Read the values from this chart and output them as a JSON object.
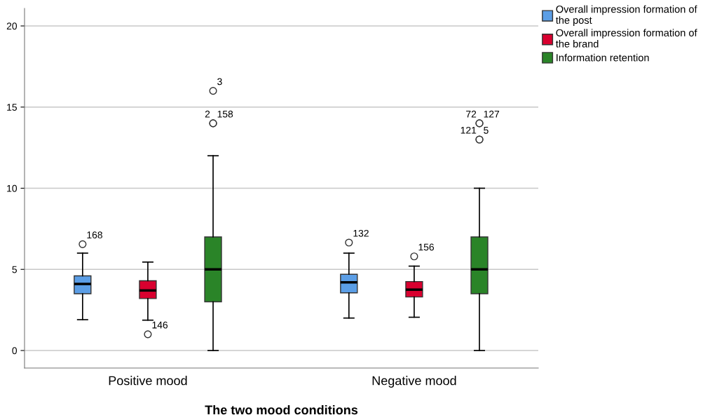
{
  "chart_data": {
    "type": "box",
    "xlabel": "The two mood conditions",
    "categories": [
      "Positive mood",
      "Negative mood"
    ],
    "series": [
      {
        "name": "Overall impression formation of\nthe post",
        "color": "#5b9ee6",
        "boxes": [
          {
            "low": 1.9,
            "q1": 3.5,
            "median": 4.1,
            "q3": 4.6,
            "high": 6.0,
            "outliers": [
              6.55
            ]
          },
          {
            "low": 2.0,
            "q1": 3.55,
            "median": 4.2,
            "q3": 4.7,
            "high": 6.0,
            "outliers": [
              6.65
            ]
          }
        ]
      },
      {
        "name": "Overall impression formation of\nthe brand",
        "color": "#d9002f",
        "boxes": [
          {
            "low": 1.87,
            "q1": 3.2,
            "median": 3.7,
            "q3": 4.3,
            "high": 5.45,
            "outliers": [
              1.0
            ]
          },
          {
            "low": 2.05,
            "q1": 3.3,
            "median": 3.75,
            "q3": 4.25,
            "high": 5.2,
            "outliers": [
              5.8
            ]
          }
        ]
      },
      {
        "name": "Information retention",
        "color": "#2a8428",
        "boxes": [
          {
            "low": 0,
            "q1": 3,
            "median": 5,
            "q3": 7,
            "high": 12,
            "outliers": [
              14,
              14,
              16
            ]
          },
          {
            "low": 0,
            "q1": 3.5,
            "median": 5,
            "q3": 7,
            "high": 10,
            "outliers": [
              13,
              13,
              14,
              14
            ]
          }
        ]
      }
    ],
    "annotations": [
      "168",
      "132",
      "146",
      "156",
      "2",
      "158",
      "3",
      "121",
      "5",
      "72",
      "127"
    ],
    "ylim": [
      -1.08,
      21.08
    ],
    "yticks": [
      0,
      5,
      10,
      15,
      20
    ],
    "grid": "y",
    "legend": "top right"
  }
}
